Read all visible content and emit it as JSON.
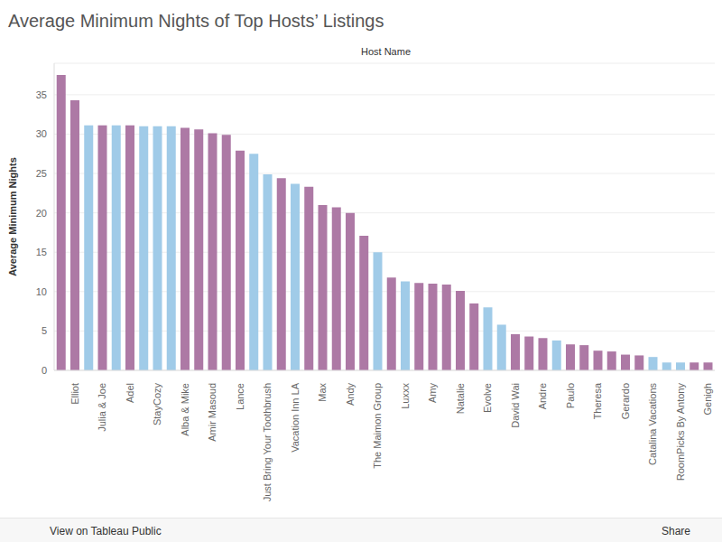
{
  "chart_data": {
    "type": "bar",
    "title": "Average Minimum Nights of Top Hosts’ Listings",
    "x_label": "Host Name",
    "y_label": "Average Minimum Nights",
    "categories": [
      null,
      "Elliot",
      null,
      "Julia & Joe",
      null,
      "Adel",
      null,
      "StayCozy",
      null,
      "Alba & Mike",
      null,
      "Amir Masoud",
      null,
      "Lance",
      null,
      "Just Bring Your Toothbrush",
      null,
      "Vacation Inn LA",
      null,
      "Max",
      null,
      "Andy",
      null,
      "The Maimon Group",
      null,
      "Luxxx",
      null,
      "Amy",
      null,
      "Natalie",
      null,
      "Evolve",
      null,
      "David Wai",
      null,
      "Andre",
      null,
      "Paulo",
      null,
      "Theresa",
      null,
      "Gerardo",
      null,
      "Catalina Vacations",
      null,
      "RoomPicks By Antony",
      null,
      "Genigh"
    ],
    "values": [
      37.5,
      34.3,
      31.1,
      31.1,
      31.1,
      31.1,
      31.0,
      31.0,
      31.0,
      30.8,
      30.6,
      30.1,
      29.9,
      27.9,
      27.5,
      24.9,
      24.4,
      23.7,
      23.3,
      21.0,
      20.7,
      20.0,
      17.1,
      15.0,
      11.8,
      11.3,
      11.1,
      11.0,
      10.9,
      10.1,
      8.5,
      8.0,
      5.8,
      4.6,
      4.3,
      4.1,
      3.8,
      3.3,
      3.2,
      2.5,
      2.4,
      2.0,
      1.9,
      1.7,
      1.0,
      1.0,
      1.0,
      1.0
    ],
    "colors": [
      "#ad79a5",
      "#ad79a5",
      "#a0cbe8",
      "#ad79a5",
      "#a0cbe8",
      "#ad79a5",
      "#a0cbe8",
      "#a0cbe8",
      "#a0cbe8",
      "#ad79a5",
      "#ad79a5",
      "#ad79a5",
      "#ad79a5",
      "#ad79a5",
      "#a0cbe8",
      "#a0cbe8",
      "#ad79a5",
      "#a0cbe8",
      "#ad79a5",
      "#ad79a5",
      "#ad79a5",
      "#ad79a5",
      "#ad79a5",
      "#a0cbe8",
      "#ad79a5",
      "#a0cbe8",
      "#ad79a5",
      "#ad79a5",
      "#ad79a5",
      "#ad79a5",
      "#ad79a5",
      "#a0cbe8",
      "#a0cbe8",
      "#ad79a5",
      "#ad79a5",
      "#ad79a5",
      "#a0cbe8",
      "#ad79a5",
      "#ad79a5",
      "#ad79a5",
      "#ad79a5",
      "#ad79a5",
      "#ad79a5",
      "#a0cbe8",
      "#a0cbe8",
      "#a0cbe8",
      "#ad79a5",
      "#ad79a5"
    ],
    "ylim": [
      0,
      39
    ],
    "yticks": [
      0,
      5,
      10,
      15,
      20,
      25,
      30,
      35
    ],
    "grid": true
  },
  "footer": {
    "left": "View on Tableau Public",
    "right": "Share"
  }
}
